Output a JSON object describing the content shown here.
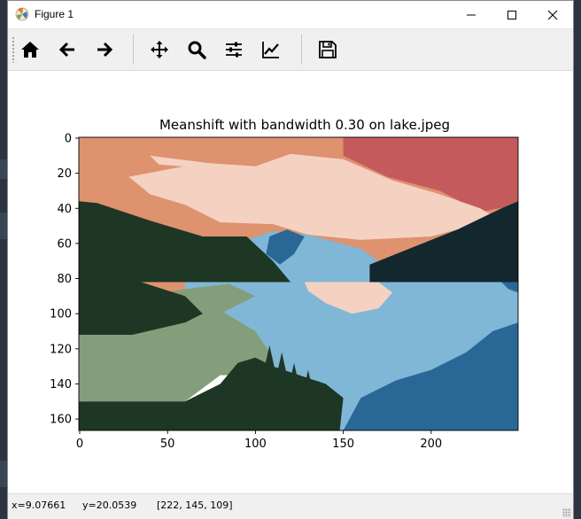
{
  "window": {
    "title": "Figure 1",
    "icon": "matplotlib-icon",
    "controls": [
      "minimize-icon",
      "maximize-icon",
      "close-icon"
    ]
  },
  "toolbar": {
    "buttons": [
      {
        "name": "home",
        "icon": "home-icon"
      },
      {
        "name": "back",
        "icon": "arrow-left-icon"
      },
      {
        "name": "forward",
        "icon": "arrow-right-icon"
      },
      {
        "name": "pan",
        "icon": "move-icon"
      },
      {
        "name": "zoom",
        "icon": "magnifier-icon"
      },
      {
        "name": "subplots",
        "icon": "sliders-icon"
      },
      {
        "name": "axes",
        "icon": "line-chart-icon"
      },
      {
        "name": "save",
        "icon": "floppy-disk-icon"
      }
    ]
  },
  "chart_data": {
    "type": "heatmap",
    "title": "Meanshift with bandwidth 0.30 on lake.jpeg",
    "xlabel": "",
    "ylabel": "",
    "x_ticks": [
      0,
      50,
      100,
      150,
      200
    ],
    "y_ticks": [
      0,
      20,
      40,
      60,
      80,
      100,
      120,
      140,
      160
    ],
    "xlim": [
      -0.5,
      249.5
    ],
    "ylim": [
      166.5,
      -0.5
    ],
    "image_size": {
      "width": 250,
      "height": 167
    },
    "clusters": {
      "peach_sky": "#de926e",
      "pink_cloud": "#f5d1c2",
      "red_sky": "#c55a5c",
      "dark_forest": "#1e3624",
      "dark_slate": "#12272e",
      "light_blue": "#81b7d6",
      "deep_blue": "#296896",
      "sage_green": "#849e7c"
    },
    "grid": false,
    "legend": "none"
  },
  "status": {
    "x": "x=9.07661",
    "y": "y=20.0539",
    "pixel": "[222, 145, 109]"
  }
}
